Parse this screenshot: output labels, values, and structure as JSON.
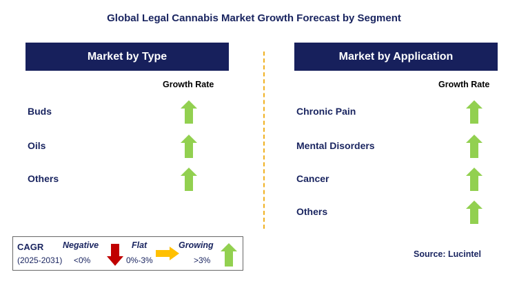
{
  "title": "Global Legal Cannabis Market Growth Forecast by Segment",
  "left": {
    "header": "Market by Type",
    "growth_label": "Growth Rate",
    "items": [
      {
        "label": "Buds",
        "trend": "growing"
      },
      {
        "label": "Oils",
        "trend": "growing"
      },
      {
        "label": "Others",
        "trend": "growing"
      }
    ]
  },
  "right": {
    "header": "Market by Application",
    "growth_label": "Growth Rate",
    "items": [
      {
        "label": "Chronic Pain",
        "trend": "growing"
      },
      {
        "label": "Mental Disorders",
        "trend": "growing"
      },
      {
        "label": "Cancer",
        "trend": "growing"
      },
      {
        "label": "Others",
        "trend": "growing"
      }
    ]
  },
  "legend": {
    "cagr": "CAGR",
    "period": "(2025-2031)",
    "negative": "Negative",
    "negative_range": "<0%",
    "flat": "Flat",
    "flat_range": "0%-3%",
    "growing": "Growing",
    "growing_range": ">3%"
  },
  "source": "Source: Lucintel",
  "colors": {
    "navy": "#17205c",
    "green": "#92d050",
    "red": "#c00000",
    "yellow": "#ffc000",
    "divider": "#f0b020"
  }
}
